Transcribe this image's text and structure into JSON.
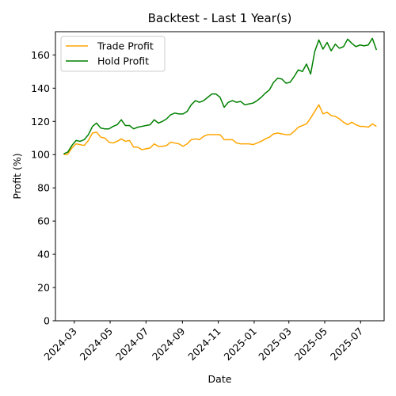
{
  "chart_data": {
    "type": "line",
    "title": "Backtest - Last 1 Year(s)",
    "xlabel": "Date",
    "ylabel": "Profit (%)",
    "ylim": [
      0,
      174
    ],
    "xlim": [
      "2024-01-29",
      "2025-08-10"
    ],
    "y_ticks": [
      "0",
      "20",
      "40",
      "60",
      "80",
      "100",
      "120",
      "140",
      "160"
    ],
    "x_ticks": [
      {
        "date": "2024-03-01",
        "label": "2024-03"
      },
      {
        "date": "2024-05-01",
        "label": "2024-05"
      },
      {
        "date": "2024-07-01",
        "label": "2024-07"
      },
      {
        "date": "2024-09-01",
        "label": "2024-09"
      },
      {
        "date": "2024-11-01",
        "label": "2024-11"
      },
      {
        "date": "2025-01-01",
        "label": "2025-01"
      },
      {
        "date": "2025-03-01",
        "label": "2025-03"
      },
      {
        "date": "2025-05-01",
        "label": "2025-05"
      },
      {
        "date": "2025-07-01",
        "label": "2025-07"
      }
    ],
    "grid": false,
    "legend_position": "top-left",
    "series": [
      {
        "name": "Trade Profit",
        "color": "#ffa500",
        "points": [
          [
            "2024-02-12",
            100.0
          ],
          [
            "2024-02-19",
            100.3
          ],
          [
            "2024-02-26",
            104.0
          ],
          [
            "2024-03-04",
            106.5
          ],
          [
            "2024-03-11",
            106.0
          ],
          [
            "2024-03-18",
            105.5
          ],
          [
            "2024-03-25",
            108.5
          ],
          [
            "2024-04-01",
            113.0
          ],
          [
            "2024-04-08",
            113.5
          ],
          [
            "2024-04-15",
            110.5
          ],
          [
            "2024-04-22",
            110.0
          ],
          [
            "2024-04-29",
            107.5
          ],
          [
            "2024-05-06",
            107.0
          ],
          [
            "2024-05-13",
            108.0
          ],
          [
            "2024-05-20",
            109.5
          ],
          [
            "2024-05-27",
            108.0
          ],
          [
            "2024-06-03",
            108.5
          ],
          [
            "2024-06-10",
            104.5
          ],
          [
            "2024-06-17",
            104.5
          ],
          [
            "2024-06-24",
            103.0
          ],
          [
            "2024-07-01",
            103.5
          ],
          [
            "2024-07-08",
            104.0
          ],
          [
            "2024-07-15",
            106.5
          ],
          [
            "2024-07-22",
            105.0
          ],
          [
            "2024-07-29",
            105.0
          ],
          [
            "2024-08-05",
            105.5
          ],
          [
            "2024-08-12",
            107.5
          ],
          [
            "2024-08-19",
            107.0
          ],
          [
            "2024-08-26",
            106.5
          ],
          [
            "2024-09-02",
            105.0
          ],
          [
            "2024-09-09",
            106.5
          ],
          [
            "2024-09-16",
            109.0
          ],
          [
            "2024-09-23",
            109.5
          ],
          [
            "2024-09-30",
            109.0
          ],
          [
            "2024-10-07",
            111.0
          ],
          [
            "2024-10-14",
            112.0
          ],
          [
            "2024-10-21",
            112.0
          ],
          [
            "2024-10-28",
            112.0
          ],
          [
            "2024-11-04",
            112.0
          ],
          [
            "2024-11-11",
            109.0
          ],
          [
            "2024-11-18",
            109.0
          ],
          [
            "2024-11-25",
            109.0
          ],
          [
            "2024-12-02",
            107.0
          ],
          [
            "2024-12-09",
            106.5
          ],
          [
            "2024-12-16",
            106.5
          ],
          [
            "2024-12-23",
            106.5
          ],
          [
            "2024-12-30",
            106.0
          ],
          [
            "2025-01-06",
            107.0
          ],
          [
            "2025-01-13",
            108.0
          ],
          [
            "2025-01-20",
            109.5
          ],
          [
            "2025-01-27",
            110.5
          ],
          [
            "2025-02-03",
            112.5
          ],
          [
            "2025-02-10",
            113.0
          ],
          [
            "2025-02-17",
            112.5
          ],
          [
            "2025-02-24",
            112.0
          ],
          [
            "2025-03-03",
            112.0
          ],
          [
            "2025-03-10",
            114.0
          ],
          [
            "2025-03-17",
            116.5
          ],
          [
            "2025-03-24",
            117.5
          ],
          [
            "2025-03-31",
            118.5
          ],
          [
            "2025-04-07",
            122.0
          ],
          [
            "2025-04-14",
            126.0
          ],
          [
            "2025-04-21",
            130.0
          ],
          [
            "2025-04-28",
            124.5
          ],
          [
            "2025-05-05",
            125.5
          ],
          [
            "2025-05-12",
            123.5
          ],
          [
            "2025-05-19",
            123.0
          ],
          [
            "2025-05-26",
            121.5
          ],
          [
            "2025-06-02",
            119.5
          ],
          [
            "2025-06-09",
            118.0
          ],
          [
            "2025-06-16",
            119.5
          ],
          [
            "2025-06-23",
            118.0
          ],
          [
            "2025-06-30",
            117.0
          ],
          [
            "2025-07-07",
            117.0
          ],
          [
            "2025-07-14",
            116.5
          ],
          [
            "2025-07-21",
            118.5
          ],
          [
            "2025-07-28",
            117.0
          ]
        ]
      },
      {
        "name": "Hold Profit",
        "color": "#008000",
        "points": [
          [
            "2024-02-12",
            100.5
          ],
          [
            "2024-02-19",
            101.5
          ],
          [
            "2024-02-26",
            105.5
          ],
          [
            "2024-03-04",
            108.5
          ],
          [
            "2024-03-11",
            108.0
          ],
          [
            "2024-03-18",
            109.0
          ],
          [
            "2024-03-25",
            112.0
          ],
          [
            "2024-04-01",
            117.0
          ],
          [
            "2024-04-08",
            119.0
          ],
          [
            "2024-04-15",
            116.0
          ],
          [
            "2024-04-22",
            115.5
          ],
          [
            "2024-04-29",
            115.5
          ],
          [
            "2024-05-06",
            117.0
          ],
          [
            "2024-05-13",
            118.0
          ],
          [
            "2024-05-20",
            121.0
          ],
          [
            "2024-05-27",
            117.5
          ],
          [
            "2024-06-03",
            117.5
          ],
          [
            "2024-06-10",
            115.5
          ],
          [
            "2024-06-17",
            116.5
          ],
          [
            "2024-06-24",
            117.0
          ],
          [
            "2024-07-01",
            117.5
          ],
          [
            "2024-07-08",
            118.0
          ],
          [
            "2024-07-15",
            121.0
          ],
          [
            "2024-07-22",
            119.0
          ],
          [
            "2024-07-29",
            120.0
          ],
          [
            "2024-08-05",
            121.5
          ],
          [
            "2024-08-12",
            124.0
          ],
          [
            "2024-08-19",
            125.0
          ],
          [
            "2024-08-26",
            124.5
          ],
          [
            "2024-09-02",
            124.5
          ],
          [
            "2024-09-09",
            126.0
          ],
          [
            "2024-09-16",
            130.0
          ],
          [
            "2024-09-23",
            132.5
          ],
          [
            "2024-09-30",
            131.5
          ],
          [
            "2024-10-07",
            132.5
          ],
          [
            "2024-10-14",
            134.5
          ],
          [
            "2024-10-21",
            136.5
          ],
          [
            "2024-10-28",
            136.5
          ],
          [
            "2024-11-04",
            134.5
          ],
          [
            "2024-11-11",
            128.5
          ],
          [
            "2024-11-18",
            131.5
          ],
          [
            "2024-11-25",
            132.5
          ],
          [
            "2024-12-02",
            131.5
          ],
          [
            "2024-12-09",
            132.0
          ],
          [
            "2024-12-16",
            130.0
          ],
          [
            "2024-12-23",
            130.5
          ],
          [
            "2024-12-30",
            131.0
          ],
          [
            "2025-01-06",
            132.5
          ],
          [
            "2025-01-13",
            134.5
          ],
          [
            "2025-01-20",
            137.0
          ],
          [
            "2025-01-27",
            139.0
          ],
          [
            "2025-02-03",
            143.5
          ],
          [
            "2025-02-10",
            146.0
          ],
          [
            "2025-02-17",
            145.5
          ],
          [
            "2025-02-24",
            143.0
          ],
          [
            "2025-03-03",
            143.5
          ],
          [
            "2025-03-10",
            147.0
          ],
          [
            "2025-03-17",
            151.0
          ],
          [
            "2025-03-24",
            150.0
          ],
          [
            "2025-03-31",
            154.5
          ],
          [
            "2025-04-07",
            148.5
          ],
          [
            "2025-04-14",
            162.0
          ],
          [
            "2025-04-21",
            169.0
          ],
          [
            "2025-04-28",
            163.5
          ],
          [
            "2025-05-05",
            167.5
          ],
          [
            "2025-05-12",
            162.5
          ],
          [
            "2025-05-19",
            166.5
          ],
          [
            "2025-05-26",
            164.0
          ],
          [
            "2025-06-02",
            165.0
          ],
          [
            "2025-06-09",
            169.5
          ],
          [
            "2025-06-16",
            167.0
          ],
          [
            "2025-06-23",
            165.0
          ],
          [
            "2025-06-30",
            166.0
          ],
          [
            "2025-07-07",
            165.5
          ],
          [
            "2025-07-14",
            166.0
          ],
          [
            "2025-07-21",
            170.0
          ],
          [
            "2025-07-28",
            163.0
          ]
        ]
      }
    ]
  }
}
